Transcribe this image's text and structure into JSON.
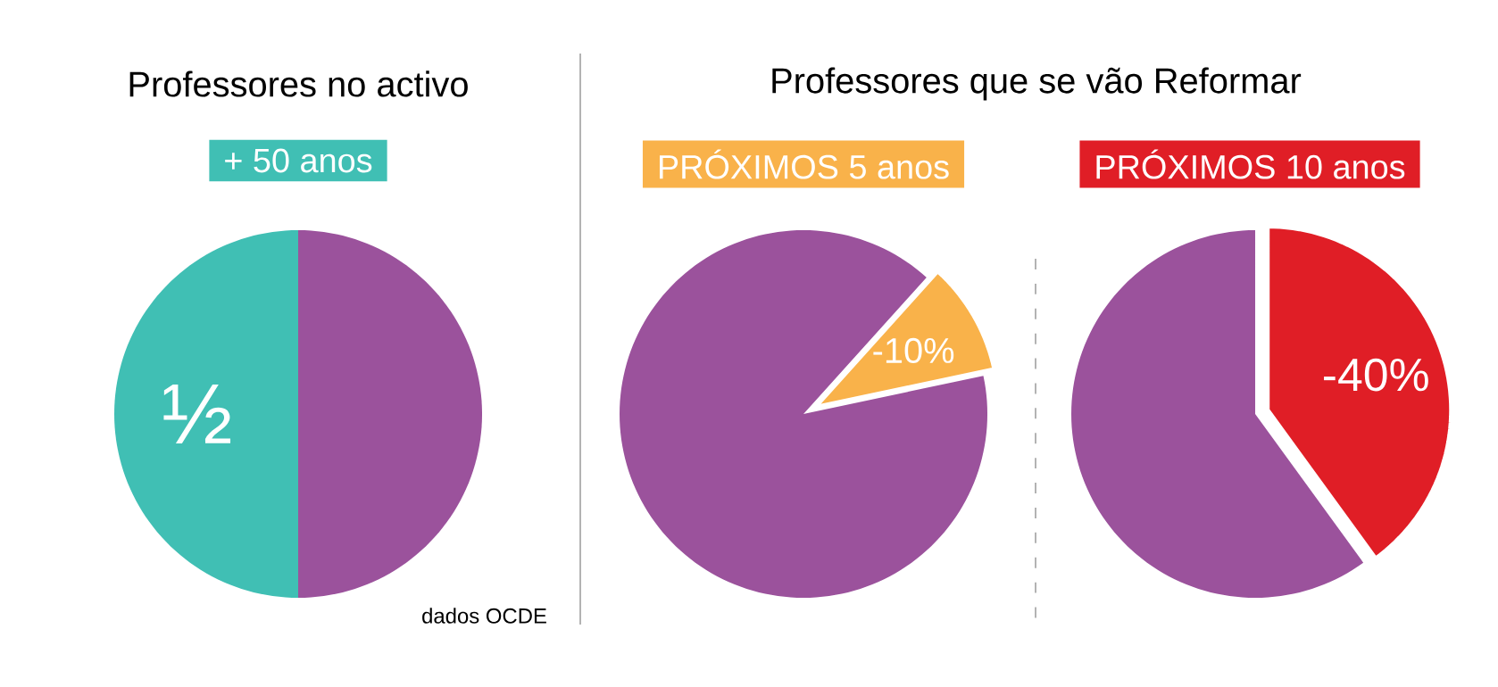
{
  "chart_data": [
    {
      "type": "pie",
      "title": "Professores no activo",
      "subtitle": "+ 50 anos",
      "categories": [
        null,
        null
      ],
      "values": [
        50,
        50
      ],
      "colors": [
        "#40bfb4",
        "#9b529c"
      ],
      "value_labels": [
        "½",
        null
      ],
      "annotations": [
        "dados OCDE"
      ]
    },
    {
      "type": "pie",
      "title": "Professores que se vão Reformar",
      "subtitle": "PRÓXIMOS 5 anos",
      "categories": [
        null,
        null
      ],
      "values": [
        10,
        90
      ],
      "colors": [
        "#f9b24a",
        "#9b529c"
      ],
      "annotations": [
        "-10%"
      ]
    },
    {
      "type": "pie",
      "subtitle": "PRÓXIMOS 10 anos",
      "categories": [
        null,
        null
      ],
      "values": [
        40,
        60
      ],
      "colors": [
        "#e01e26",
        "#9b529c"
      ],
      "annotations": [
        "-40%"
      ]
    }
  ]
}
